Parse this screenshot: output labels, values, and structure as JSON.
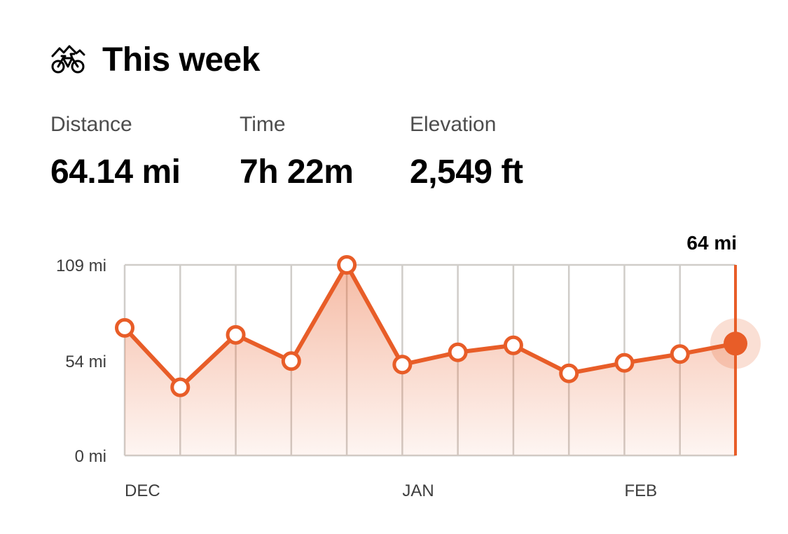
{
  "header": {
    "title": "This week",
    "icon": "bike-mountain-icon"
  },
  "stats": [
    {
      "label": "Distance",
      "value": "64.14 mi"
    },
    {
      "label": "Time",
      "value": "7h 22m"
    },
    {
      "label": "Elevation",
      "value": "2,549 ft"
    }
  ],
  "colors": {
    "accent": "#e85d28",
    "grid": "#d0cdc9",
    "text": "#000000"
  },
  "chart_data": {
    "type": "area",
    "title": "",
    "xlabel": "",
    "ylabel": "",
    "unit": "mi",
    "ylim": [
      0,
      109
    ],
    "yticks": [
      {
        "value": 0,
        "label": "0 mi"
      },
      {
        "value": 54,
        "label": "54 mi"
      },
      {
        "value": 109,
        "label": "109 mi"
      }
    ],
    "month_labels": [
      {
        "index": 0,
        "label": "DEC"
      },
      {
        "index": 5,
        "label": "JAN"
      },
      {
        "index": 9,
        "label": "FEB"
      }
    ],
    "series": [
      {
        "values": [
          73,
          39,
          69,
          54,
          109,
          52,
          59,
          63,
          47,
          53,
          58,
          64
        ]
      }
    ],
    "highlight": {
      "index": 11,
      "label": "64 mi"
    },
    "grid": true
  }
}
